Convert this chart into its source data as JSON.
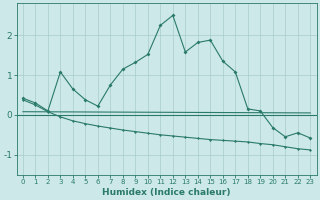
{
  "xlabel": "Humidex (Indice chaleur)",
  "bg_color": "#cce8e8",
  "line_color": "#2a7a6a",
  "grid_color": "#a8cccc",
  "xlim": [
    -0.5,
    23.5
  ],
  "ylim": [
    -1.5,
    2.8
  ],
  "xticks": [
    0,
    1,
    2,
    3,
    4,
    5,
    6,
    7,
    8,
    9,
    10,
    11,
    12,
    13,
    14,
    15,
    16,
    17,
    18,
    19,
    20,
    21,
    22,
    23
  ],
  "yticks": [
    -1,
    0,
    1,
    2
  ],
  "series1_x": [
    0,
    1,
    2,
    3,
    4,
    5,
    6,
    7,
    8,
    9,
    10,
    11,
    12,
    13,
    14,
    15,
    16,
    17,
    18,
    19,
    20,
    21,
    22,
    23
  ],
  "series1_y": [
    0.42,
    0.3,
    0.1,
    1.08,
    0.65,
    0.38,
    0.22,
    0.75,
    1.15,
    1.32,
    1.52,
    2.25,
    2.5,
    1.58,
    1.82,
    1.88,
    1.35,
    1.08,
    0.15,
    0.1,
    -0.32,
    -0.55,
    -0.45,
    -0.58
  ],
  "series2_x": [
    0,
    23
  ],
  "series2_y": [
    0.08,
    0.05
  ],
  "series3_x": [
    0,
    1,
    2,
    3,
    4,
    5,
    6,
    7,
    8,
    9,
    10,
    11,
    12,
    13,
    14,
    15,
    16,
    17,
    18,
    19,
    20,
    21,
    22,
    23
  ],
  "series3_y": [
    0.38,
    0.25,
    0.08,
    -0.05,
    -0.15,
    -0.22,
    -0.28,
    -0.33,
    -0.38,
    -0.42,
    -0.46,
    -0.5,
    -0.53,
    -0.56,
    -0.59,
    -0.62,
    -0.64,
    -0.66,
    -0.68,
    -0.72,
    -0.75,
    -0.8,
    -0.85,
    -0.88
  ]
}
